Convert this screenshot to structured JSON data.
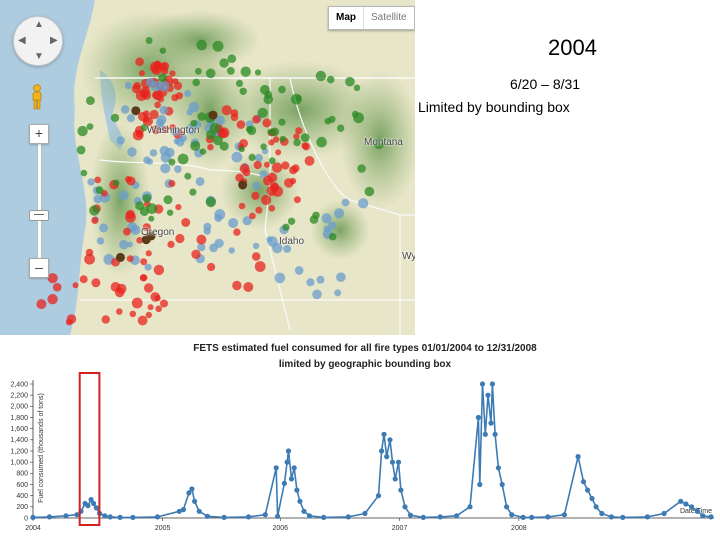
{
  "map": {
    "controls": {
      "map_label": "Map",
      "satellite_label": "Satellite",
      "zoom_in": "+",
      "zoom_out": "–"
    },
    "labels": {
      "washington": "Washington",
      "montana": "Montana",
      "oregon": "Oregon",
      "idaho": "Idaho",
      "wy": "Wy"
    },
    "colors": {
      "red": "#e8231e",
      "green": "#2b8a23",
      "blue": "#6a9ccc",
      "dark": "#5a3a1a"
    }
  },
  "slide": {
    "year": "2004",
    "date_range": "6/20 – 8/31",
    "note": "Limited by bounding box"
  },
  "chart_data": {
    "type": "line",
    "title": "FETS estimated fuel consumed for all fire types 01/01/2004 to 12/31/2008",
    "subtitle": "limited by geographic bounding box",
    "ylabel": "Fuel consumed (thousands of tons)",
    "xlabel": "Date/Time",
    "ylim": [
      0,
      2400
    ],
    "y_ticks": [
      "0",
      "200",
      "400",
      "600",
      "800",
      "1,000",
      "1,200",
      "1,400",
      "1,600",
      "1,800",
      "2,000",
      "2,200",
      "2,400"
    ],
    "x_ticks": [
      "2004",
      "2005",
      "2006",
      "2007",
      "2008"
    ],
    "series": [
      {
        "color": "#3d7bb5",
        "points": [
          [
            "2004-01-01",
            10
          ],
          [
            "2004-03-01",
            20
          ],
          [
            "2004-05-01",
            40
          ],
          [
            "2004-06-10",
            60
          ],
          [
            "2004-06-25",
            120
          ],
          [
            "2004-07-10",
            260
          ],
          [
            "2004-07-20",
            220
          ],
          [
            "2004-08-01",
            330
          ],
          [
            "2004-08-10",
            260
          ],
          [
            "2004-08-20",
            180
          ],
          [
            "2004-09-01",
            80
          ],
          [
            "2004-09-20",
            40
          ],
          [
            "2004-10-10",
            20
          ],
          [
            "2004-11-15",
            10
          ],
          [
            "2005-01-01",
            10
          ],
          [
            "2005-04-01",
            20
          ],
          [
            "2005-06-20",
            120
          ],
          [
            "2005-07-05",
            150
          ],
          [
            "2005-07-25",
            450
          ],
          [
            "2005-08-05",
            520
          ],
          [
            "2005-08-15",
            300
          ],
          [
            "2005-09-01",
            120
          ],
          [
            "2005-10-01",
            30
          ],
          [
            "2005-12-01",
            10
          ],
          [
            "2006-03-01",
            20
          ],
          [
            "2006-05-01",
            60
          ],
          [
            "2006-06-10",
            900
          ],
          [
            "2006-06-15",
            30
          ],
          [
            "2006-07-10",
            620
          ],
          [
            "2006-07-20",
            1000
          ],
          [
            "2006-07-25",
            1200
          ],
          [
            "2006-08-05",
            700
          ],
          [
            "2006-08-15",
            900
          ],
          [
            "2006-08-25",
            500
          ],
          [
            "2006-09-05",
            300
          ],
          [
            "2006-09-20",
            120
          ],
          [
            "2006-10-10",
            40
          ],
          [
            "2006-12-01",
            10
          ],
          [
            "2007-03-01",
            20
          ],
          [
            "2007-05-01",
            80
          ],
          [
            "2007-06-20",
            400
          ],
          [
            "2007-07-01",
            1200
          ],
          [
            "2007-07-10",
            1500
          ],
          [
            "2007-07-20",
            1100
          ],
          [
            "2007-08-01",
            1400
          ],
          [
            "2007-08-10",
            1000
          ],
          [
            "2007-08-20",
            700
          ],
          [
            "2007-09-01",
            1000
          ],
          [
            "2007-09-10",
            500
          ],
          [
            "2007-09-25",
            200
          ],
          [
            "2007-10-15",
            50
          ],
          [
            "2007-12-01",
            10
          ],
          [
            "2008-02-01",
            20
          ],
          [
            "2008-04-01",
            40
          ],
          [
            "2008-05-20",
            200
          ],
          [
            "2008-06-20",
            1800
          ],
          [
            "2008-06-25",
            600
          ],
          [
            "2008-07-05",
            2400
          ],
          [
            "2008-07-15",
            1500
          ],
          [
            "2008-07-25",
            2200
          ],
          [
            "2008-08-05",
            1700
          ],
          [
            "2008-08-10",
            2400
          ],
          [
            "2008-08-20",
            1500
          ],
          [
            "2008-09-01",
            900
          ],
          [
            "2008-09-15",
            600
          ],
          [
            "2008-10-01",
            200
          ],
          [
            "2008-10-20",
            60
          ],
          [
            "2008-12-01",
            10
          ],
          [
            "2009-01-01",
            10
          ],
          [
            "2009-03-01",
            20
          ],
          [
            "2009-05-01",
            60
          ],
          [
            "2009-06-20",
            1100
          ],
          [
            "2009-07-10",
            650
          ],
          [
            "2009-07-25",
            500
          ],
          [
            "2009-08-10",
            350
          ],
          [
            "2009-08-25",
            200
          ],
          [
            "2009-09-15",
            80
          ],
          [
            "2009-10-20",
            20
          ],
          [
            "2009-12-01",
            10
          ],
          [
            "2010-03-01",
            20
          ],
          [
            "2010-05-01",
            80
          ],
          [
            "2010-07-01",
            300
          ],
          [
            "2010-07-20",
            250
          ],
          [
            "2010-08-10",
            200
          ],
          [
            "2010-09-01",
            120
          ],
          [
            "2010-09-20",
            40
          ],
          [
            "2010-10-20",
            20
          ]
        ]
      }
    ],
    "highlight": {
      "start": "2004-06-20",
      "end": "2004-08-31",
      "color": "#d42020"
    }
  }
}
